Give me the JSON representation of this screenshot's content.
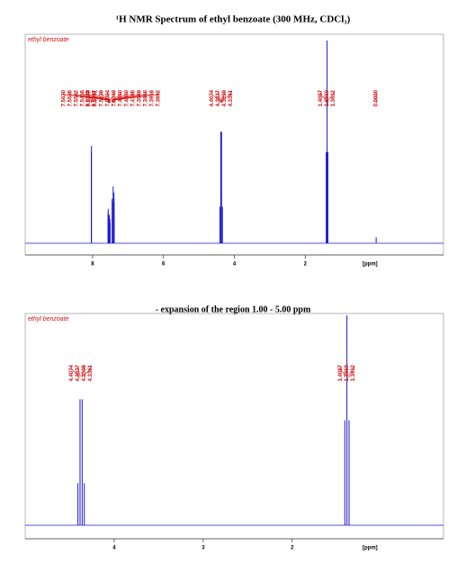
{
  "chart_data": [
    {
      "type": "nmr",
      "title": "¹H NMR Spectrum of ethyl benzoate (300 MHz, CDCl₃)",
      "label": "ethyl benzoate",
      "xlabel": "[ppm]",
      "xlim": [
        9.9,
        -1.9
      ],
      "xticks": [
        8,
        6,
        4,
        2
      ],
      "ylim": [
        0,
        100
      ],
      "color": "#1a1ad0",
      "label_color": "#d01010",
      "peaks": [
        8.0345,
        8.0297,
        {
          "value": 7.562,
          "label": "7.5620"
        },
        7.5585,
        7.5542,
        7.5415,
        7.5377,
        7.5271,
        7.5139,
        7.5094,
        7.5049,
        {
          "value": 7.446,
          "label": "7.4460"
        },
        {
          "value": 7.445,
          "label": "7.4450"
        },
        7.4185,
        7.3969,
        7.3946,
        7.3918,
        7.3892,
        4.4074,
        4.3837,
        4.3599,
        4.3361,
        1.4087,
        {
          "value": 1.385,
          "label": "1.3850"
        },
        1.3612,
        {
          "value": 0,
          "label": "0.0000"
        }
      ],
      "heights": [
        45,
        48,
        15,
        17,
        14,
        10,
        12,
        14,
        8,
        12,
        10,
        22,
        20,
        28,
        25,
        22,
        20,
        12,
        18,
        55,
        55,
        18,
        45,
        100,
        45,
        3
      ]
    },
    {
      "type": "nmr",
      "title": "- expansion of the region 1.00 - 5.00 ppm",
      "label": "ethyl benzoate",
      "xlabel": "[ppm]",
      "xlim": [
        5.0,
        0.3
      ],
      "xticks": [
        4,
        3,
        2
      ],
      "ylim": [
        0,
        100
      ],
      "color": "#1a1ad0",
      "label_color": "#d01010",
      "peaks": [
        4.4074,
        4.3837,
        4.3599,
        4.3361,
        1.4087,
        {
          "value": 1.385,
          "label": "1.3850"
        },
        1.3612
      ],
      "heights": [
        20,
        60,
        60,
        20,
        50,
        100,
        50
      ]
    }
  ]
}
